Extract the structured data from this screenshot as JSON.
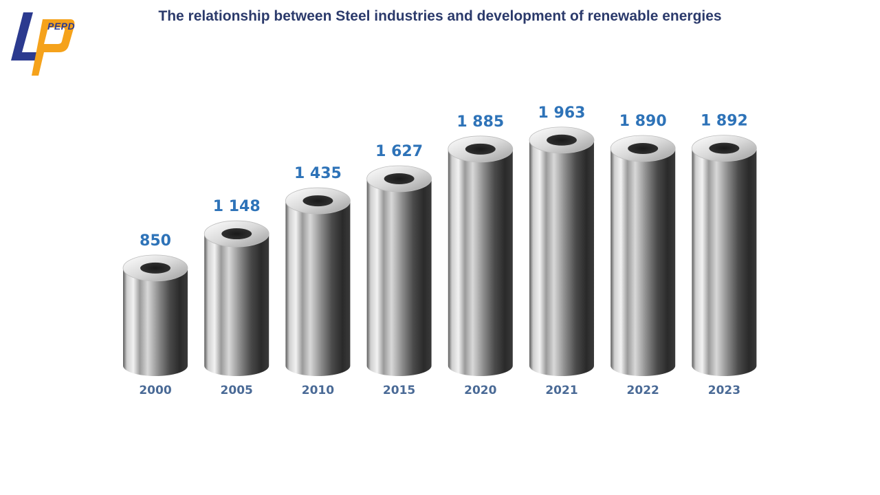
{
  "header": {
    "title": "The relationship between Steel industries and development of renewable energies",
    "logo_text": "PEPD"
  },
  "colors": {
    "title": "#2b3a6b",
    "value_label": "#2e73b8",
    "category_label": "#4a6a96",
    "logo_blue": "#2b3a8f",
    "logo_orange": "#f5a21b"
  },
  "chart_data": {
    "type": "bar",
    "style": "3d-steel-cylinders",
    "categories": [
      "2000",
      "2005",
      "2010",
      "2015",
      "2020",
      "2021",
      "2022",
      "2023"
    ],
    "values": [
      850,
      1148,
      1435,
      1627,
      1885,
      1963,
      1890,
      1892
    ],
    "value_labels": [
      "850",
      "1 148",
      "1 435",
      "1 627",
      "1 885",
      "1 963",
      "1 890",
      "1 892"
    ],
    "title": "The relationship between Steel industries and development of renewable energies",
    "xlabel": "",
    "ylabel": "",
    "grid": false,
    "legend": "none"
  }
}
